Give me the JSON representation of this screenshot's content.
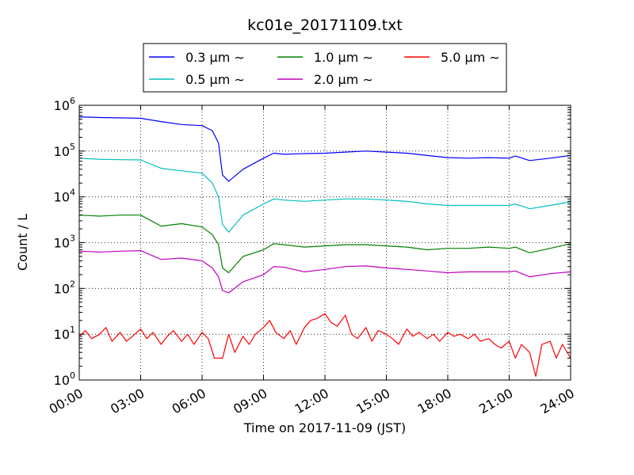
{
  "chart_data": {
    "type": "line",
    "title": "kc01e_20171109.txt",
    "xlabel": "Time on 2017-11-09 (JST)",
    "ylabel": "Count / L",
    "yscale": "log",
    "ylim": [
      1,
      1000000
    ],
    "xlim_hours": [
      0,
      24
    ],
    "grid": true,
    "legend_position": "top-center",
    "x_tick_labels": [
      "00:00",
      "03:00",
      "06:00",
      "09:00",
      "12:00",
      "15:00",
      "18:00",
      "21:00",
      "24:00"
    ],
    "y_tick_labels": [
      {
        "base": "10",
        "exp": "0"
      },
      {
        "base": "10",
        "exp": "1"
      },
      {
        "base": "10",
        "exp": "2"
      },
      {
        "base": "10",
        "exp": "3"
      },
      {
        "base": "10",
        "exp": "4"
      },
      {
        "base": "10",
        "exp": "5"
      },
      {
        "base": "10",
        "exp": "6"
      }
    ],
    "series": [
      {
        "name": "0.3 μm ∼",
        "color": "#0000ff",
        "points": [
          [
            0,
            560000
          ],
          [
            0.5,
            550000
          ],
          [
            1,
            540000
          ],
          [
            2,
            530000
          ],
          [
            3,
            520000
          ],
          [
            4,
            440000
          ],
          [
            5,
            380000
          ],
          [
            6,
            360000
          ],
          [
            6.5,
            280000
          ],
          [
            6.8,
            150000
          ],
          [
            7,
            30000
          ],
          [
            7.3,
            22000
          ],
          [
            8,
            40000
          ],
          [
            9,
            70000
          ],
          [
            9.5,
            90000
          ],
          [
            10,
            85000
          ],
          [
            11,
            88000
          ],
          [
            12,
            90000
          ],
          [
            13,
            95000
          ],
          [
            14,
            100000
          ],
          [
            15,
            95000
          ],
          [
            16,
            90000
          ],
          [
            17,
            80000
          ],
          [
            18,
            72000
          ],
          [
            19,
            70000
          ],
          [
            20,
            72000
          ],
          [
            21,
            70000
          ],
          [
            21.3,
            78000
          ],
          [
            22,
            62000
          ],
          [
            23,
            70000
          ],
          [
            24,
            80000
          ]
        ]
      },
      {
        "name": "0.5 μm ∼",
        "color": "#00bfbf",
        "points": [
          [
            0,
            70000
          ],
          [
            0.5,
            68000
          ],
          [
            1,
            66000
          ],
          [
            2,
            65000
          ],
          [
            3,
            64000
          ],
          [
            4,
            42000
          ],
          [
            5,
            37000
          ],
          [
            6,
            33000
          ],
          [
            6.5,
            20000
          ],
          [
            6.8,
            10000
          ],
          [
            7,
            2500
          ],
          [
            7.3,
            1700
          ],
          [
            8,
            4000
          ],
          [
            9,
            7000
          ],
          [
            9.5,
            9000
          ],
          [
            10,
            8500
          ],
          [
            11,
            8000
          ],
          [
            12,
            8500
          ],
          [
            13,
            9000
          ],
          [
            14,
            9000
          ],
          [
            15,
            8500
          ],
          [
            16,
            8000
          ],
          [
            17,
            7000
          ],
          [
            18,
            6500
          ],
          [
            19,
            6500
          ],
          [
            20,
            6500
          ],
          [
            21,
            6500
          ],
          [
            21.3,
            7000
          ],
          [
            22,
            5500
          ],
          [
            23,
            6500
          ],
          [
            24,
            7800
          ]
        ]
      },
      {
        "name": "1.0 μm ∼",
        "color": "#008000",
        "points": [
          [
            0,
            4000
          ],
          [
            0.5,
            3900
          ],
          [
            1,
            3800
          ],
          [
            2,
            4000
          ],
          [
            3,
            4000
          ],
          [
            4,
            2300
          ],
          [
            5,
            2600
          ],
          [
            6,
            2200
          ],
          [
            6.5,
            1500
          ],
          [
            6.8,
            900
          ],
          [
            7,
            280
          ],
          [
            7.3,
            220
          ],
          [
            8,
            500
          ],
          [
            9,
            700
          ],
          [
            9.5,
            950
          ],
          [
            10,
            900
          ],
          [
            11,
            800
          ],
          [
            12,
            850
          ],
          [
            13,
            900
          ],
          [
            14,
            900
          ],
          [
            15,
            850
          ],
          [
            16,
            800
          ],
          [
            17,
            700
          ],
          [
            18,
            750
          ],
          [
            19,
            750
          ],
          [
            20,
            800
          ],
          [
            21,
            750
          ],
          [
            21.3,
            800
          ],
          [
            22,
            600
          ],
          [
            23,
            750
          ],
          [
            24,
            950
          ]
        ]
      },
      {
        "name": "2.0 μm ∼",
        "color": "#bf00bf",
        "points": [
          [
            0,
            650
          ],
          [
            0.5,
            640
          ],
          [
            1,
            620
          ],
          [
            2,
            650
          ],
          [
            3,
            670
          ],
          [
            4,
            430
          ],
          [
            5,
            460
          ],
          [
            6,
            400
          ],
          [
            6.5,
            280
          ],
          [
            6.8,
            180
          ],
          [
            7,
            90
          ],
          [
            7.3,
            80
          ],
          [
            8,
            140
          ],
          [
            9,
            200
          ],
          [
            9.5,
            300
          ],
          [
            10,
            290
          ],
          [
            11,
            230
          ],
          [
            12,
            260
          ],
          [
            13,
            300
          ],
          [
            14,
            310
          ],
          [
            15,
            280
          ],
          [
            16,
            260
          ],
          [
            17,
            240
          ],
          [
            18,
            220
          ],
          [
            19,
            230
          ],
          [
            20,
            230
          ],
          [
            21,
            230
          ],
          [
            21.3,
            240
          ],
          [
            22,
            180
          ],
          [
            23,
            210
          ],
          [
            24,
            230
          ]
        ]
      },
      {
        "name": "5.0 μm ∼",
        "color": "#ff0000",
        "points": [
          [
            0,
            9
          ],
          [
            0.3,
            12
          ],
          [
            0.6,
            8
          ],
          [
            1,
            10
          ],
          [
            1.3,
            14
          ],
          [
            1.6,
            7
          ],
          [
            2,
            11
          ],
          [
            2.3,
            7
          ],
          [
            2.6,
            9
          ],
          [
            3,
            13
          ],
          [
            3.3,
            8
          ],
          [
            3.6,
            11
          ],
          [
            4,
            6
          ],
          [
            4.3,
            9
          ],
          [
            4.6,
            12
          ],
          [
            5,
            7
          ],
          [
            5.3,
            10
          ],
          [
            5.6,
            6
          ],
          [
            6,
            11
          ],
          [
            6.3,
            8
          ],
          [
            6.6,
            3
          ],
          [
            7,
            3
          ],
          [
            7.3,
            10
          ],
          [
            7.6,
            4
          ],
          [
            8,
            9
          ],
          [
            8.3,
            6
          ],
          [
            8.6,
            10
          ],
          [
            9,
            14
          ],
          [
            9.3,
            20
          ],
          [
            9.6,
            11
          ],
          [
            10,
            8
          ],
          [
            10.3,
            12
          ],
          [
            10.6,
            6
          ],
          [
            11,
            14
          ],
          [
            11.3,
            20
          ],
          [
            11.6,
            22
          ],
          [
            12,
            28
          ],
          [
            12.3,
            18
          ],
          [
            12.6,
            15
          ],
          [
            13,
            26
          ],
          [
            13.3,
            10
          ],
          [
            13.6,
            8
          ],
          [
            14,
            14
          ],
          [
            14.3,
            7
          ],
          [
            14.6,
            12
          ],
          [
            15,
            10
          ],
          [
            15.3,
            8
          ],
          [
            15.6,
            6
          ],
          [
            16,
            13
          ],
          [
            16.3,
            9
          ],
          [
            16.6,
            11
          ],
          [
            17,
            8
          ],
          [
            17.3,
            10
          ],
          [
            17.6,
            7
          ],
          [
            18,
            11
          ],
          [
            18.3,
            9
          ],
          [
            18.6,
            10
          ],
          [
            19,
            8
          ],
          [
            19.3,
            10
          ],
          [
            19.6,
            7
          ],
          [
            20,
            8
          ],
          [
            20.3,
            6
          ],
          [
            20.6,
            5
          ],
          [
            21,
            7
          ],
          [
            21.3,
            3
          ],
          [
            21.6,
            6
          ],
          [
            22,
            4
          ],
          [
            22.3,
            1.2
          ],
          [
            22.6,
            6
          ],
          [
            23,
            7
          ],
          [
            23.3,
            3
          ],
          [
            23.6,
            6
          ],
          [
            24,
            3
          ]
        ]
      }
    ]
  }
}
